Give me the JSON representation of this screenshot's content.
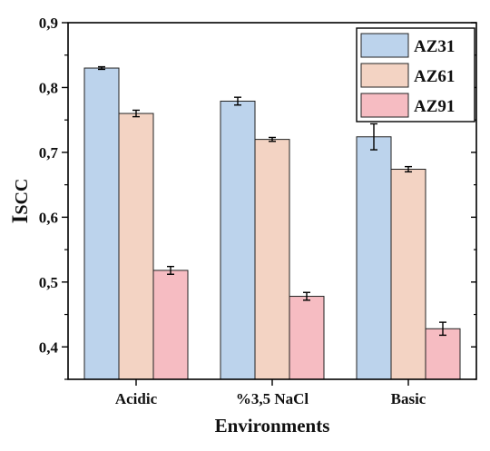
{
  "chart_data": {
    "type": "bar",
    "title": "",
    "xlabel": "Environments",
    "ylabel": "ISCC",
    "categories": [
      "Acidic",
      "%3,5 NaCl",
      "Basic"
    ],
    "ylim": [
      0.35,
      0.9
    ],
    "yticks": [
      "0,4",
      "0,5",
      "0,6",
      "0,7",
      "0,8",
      "0,9"
    ],
    "ytick_values": [
      0.4,
      0.5,
      0.6,
      0.7,
      0.8,
      0.9
    ],
    "legend_position": "top-right",
    "grid": false,
    "series": [
      {
        "name": "AZ31",
        "color": "#bcd3ec",
        "values": [
          0.83,
          0.779,
          0.724
        ],
        "errors": [
          0.002,
          0.006,
          0.02
        ]
      },
      {
        "name": "AZ61",
        "color": "#f3d3c3",
        "values": [
          0.76,
          0.72,
          0.674
        ],
        "errors": [
          0.005,
          0.003,
          0.004
        ]
      },
      {
        "name": "AZ91",
        "color": "#f6bcc2",
        "values": [
          0.518,
          0.478,
          0.428
        ],
        "errors": [
          0.006,
          0.006,
          0.01
        ]
      }
    ]
  }
}
